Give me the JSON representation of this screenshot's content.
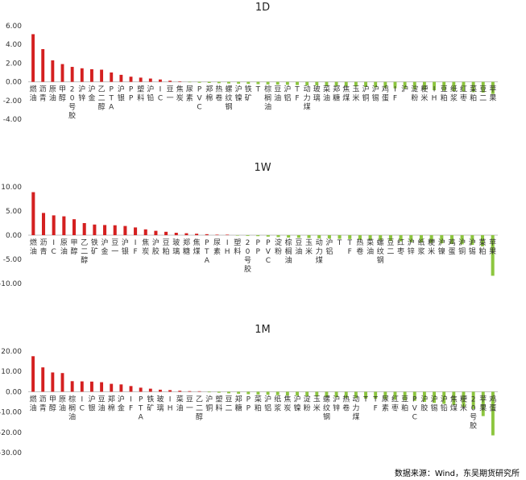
{
  "source_note": "数据来源：Wind，东吴期货研究所",
  "bar_colors": {
    "positive": "#d42020",
    "negative": "#8dc63f"
  },
  "chart_data": [
    {
      "type": "bar",
      "title": "1D",
      "ylim": [
        -4,
        6
      ],
      "yticks": [
        "6.00",
        "4.00",
        "2.00",
        "0.00",
        "-2.00",
        "-4.00"
      ],
      "ytick_values": [
        6,
        4,
        2,
        0,
        -2,
        -4
      ],
      "categories": [
        "燃油",
        "沥青",
        "原油",
        "甲醇",
        "20号胶",
        "沪锌",
        "沪金",
        "乙二醇",
        "PTA",
        "沪银",
        "PP",
        "塑料",
        "沪铅",
        "IC",
        "豆一",
        "焦炭",
        "尿素",
        "PVC",
        "郑棉",
        "热卷",
        "螺纹钢",
        "沪镍",
        "铁矿",
        "T",
        "棕榈油",
        "豆油",
        "沪铝",
        "TF",
        "动力煤",
        "玻璃",
        "菜油",
        "郑糖",
        "焦煤",
        "玉米",
        "沪铜",
        "沪锡",
        "鸡蛋",
        "IF",
        "沪",
        "淀粉",
        "粳米",
        "IH",
        "豆粕",
        "纸浆",
        "红枣",
        "菜粕",
        "豆二",
        "苹果"
      ],
      "values": [
        5.1,
        3.5,
        2.3,
        1.9,
        1.6,
        1.45,
        1.35,
        1.3,
        1.0,
        0.75,
        0.55,
        0.45,
        0.35,
        0.25,
        0.12,
        0.05,
        -0.05,
        -0.1,
        -0.12,
        -0.15,
        -0.18,
        -0.2,
        -0.22,
        -0.25,
        -0.28,
        -0.3,
        -0.32,
        -0.35,
        -0.38,
        -0.4,
        -0.42,
        -0.45,
        -0.48,
        -0.5,
        -0.55,
        -0.6,
        -0.65,
        -0.7,
        -0.75,
        -0.8,
        -0.85,
        -0.9,
        -0.95,
        -1.0,
        -1.05,
        -1.1,
        -1.15,
        -1.3
      ]
    },
    {
      "type": "bar",
      "title": "1W",
      "ylim": [
        -10,
        10
      ],
      "yticks": [
        "10.00",
        "5.00",
        "0.00",
        "-5.00",
        "-10.00"
      ],
      "ytick_values": [
        10,
        5,
        0,
        -5,
        -10
      ],
      "categories": [
        "燃油",
        "沥青",
        "IC",
        "原油",
        "甲醇",
        "乙二醇",
        "铁矿",
        "沪金",
        "豆一",
        "沪银",
        "IF",
        "焦炭",
        "沪胶",
        "豆粕",
        "玻璃",
        "郑糖",
        "焦煤",
        "PTA",
        "尿素",
        "IH",
        "塑料",
        "20号胶",
        "PP",
        "PVC",
        "淀粉",
        "棕榈油",
        "豆油",
        "玉米",
        "动力煤",
        "沪铝",
        "T",
        "TF",
        "热卷",
        "菜油",
        "螺纹钢",
        "豆二",
        "红枣",
        "沪锌",
        "纸浆",
        "粳米",
        "沪镍",
        "鸡蛋",
        "沪铜",
        "沪锡",
        "菜粕",
        "苹果"
      ],
      "values": [
        8.9,
        4.6,
        4.1,
        3.9,
        3.3,
        2.5,
        2.2,
        2.1,
        2.05,
        1.9,
        1.6,
        1.2,
        0.9,
        0.7,
        0.5,
        0.4,
        0.3,
        0.2,
        0.1,
        0.05,
        -0.1,
        -0.15,
        -0.2,
        -0.3,
        -0.4,
        -0.5,
        -0.55,
        -0.6,
        -0.65,
        -0.7,
        -0.75,
        -0.8,
        -0.9,
        -1.0,
        -1.1,
        -1.2,
        -1.3,
        -1.4,
        -1.5,
        -1.6,
        -1.7,
        -1.8,
        -1.9,
        -2.0,
        -2.3,
        -8.4
      ]
    },
    {
      "type": "bar",
      "title": "1M",
      "ylim": [
        -30,
        20
      ],
      "yticks": [
        "20.00",
        "10.00",
        "0.00",
        "-10.00",
        "-20.00",
        "-30.00"
      ],
      "ytick_values": [
        20,
        10,
        0,
        -10,
        -20,
        -30
      ],
      "categories": [
        "燃油",
        "沥青",
        "甲醇",
        "原油",
        "棕榈油",
        "IC",
        "沪银",
        "豆油",
        "郑棉",
        "沪金",
        "IF",
        "PTA",
        "铁矿",
        "玻璃",
        "IH",
        "菜油",
        "豆一",
        "乙二醇",
        "沪铜",
        "塑料",
        "豆二",
        "郑糖",
        "PP",
        "菜粕",
        "沪铝",
        "纸浆",
        "焦炭",
        "沪镍",
        "淀粉",
        "玉米",
        "螺纹钢",
        "沪锌",
        "热卷",
        "动力煤",
        "T",
        "TF",
        "尿素",
        "红枣",
        "豆粕",
        "PVC",
        "沪胶",
        "沪锡",
        "沪铅",
        "焦煤",
        "粳米",
        "20号胶",
        "苹果",
        "鸡蛋"
      ],
      "values": [
        17.5,
        12.0,
        9.5,
        9.2,
        5.2,
        5.1,
        5.0,
        4.7,
        3.9,
        3.6,
        2.8,
        2.0,
        1.5,
        1.0,
        0.8,
        0.5,
        0.3,
        0.2,
        -0.3,
        -0.5,
        -0.8,
        -1.0,
        -1.2,
        -1.4,
        -1.5,
        -1.7,
        -1.9,
        -2.0,
        -2.2,
        -2.4,
        -2.6,
        -2.8,
        -3.0,
        -3.2,
        -3.4,
        -3.5,
        -3.7,
        -3.9,
        -4.2,
        -4.5,
        -5.0,
        -5.5,
        -6.0,
        -6.5,
        -7.5,
        -8.5,
        -12.0,
        -21.5
      ]
    }
  ]
}
